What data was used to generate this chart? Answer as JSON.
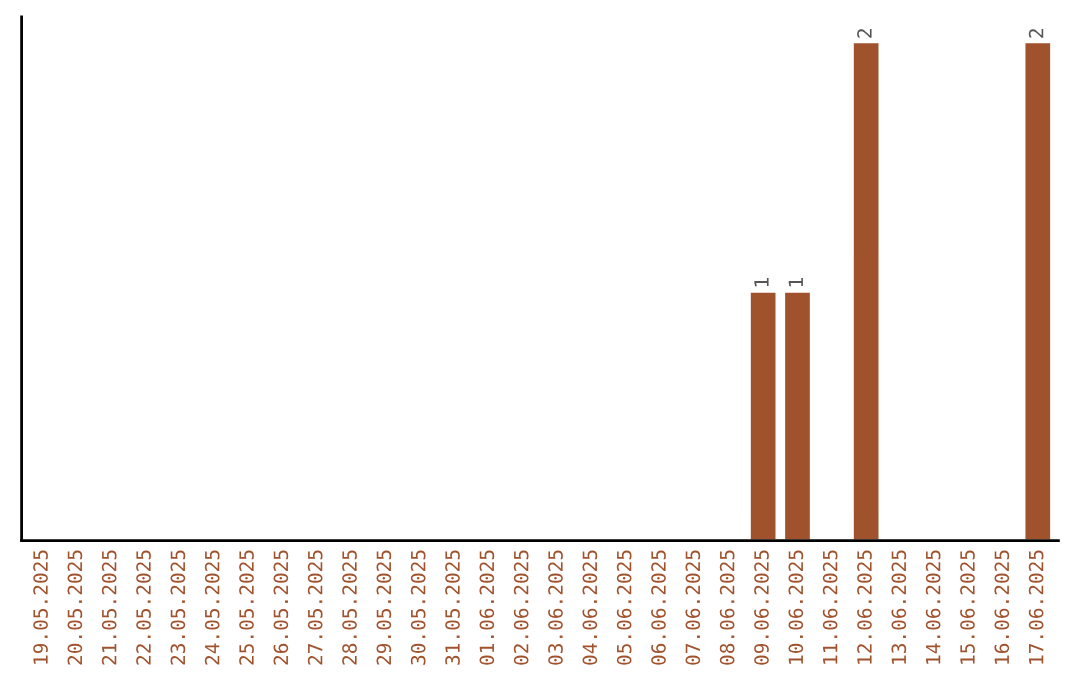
{
  "chart_data": {
    "type": "bar",
    "categories": [
      "19.05.2025",
      "20.05.2025",
      "21.05.2025",
      "22.05.2025",
      "23.05.2025",
      "24.05.2025",
      "25.05.2025",
      "26.05.2025",
      "27.05.2025",
      "28.05.2025",
      "29.05.2025",
      "30.05.2025",
      "31.05.2025",
      "01.06.2025",
      "02.06.2025",
      "03.06.2025",
      "04.06.2025",
      "05.06.2025",
      "06.06.2025",
      "07.06.2025",
      "08.06.2025",
      "09.06.2025",
      "10.06.2025",
      "11.06.2025",
      "12.06.2025",
      "13.06.2025",
      "14.06.2025",
      "15.06.2025",
      "16.06.2025",
      "17.06.2025"
    ],
    "values": [
      null,
      null,
      null,
      null,
      null,
      null,
      null,
      null,
      null,
      null,
      null,
      null,
      null,
      null,
      null,
      null,
      null,
      null,
      null,
      null,
      null,
      1,
      1,
      null,
      2,
      null,
      null,
      null,
      null,
      2
    ],
    "value_labels": [
      null,
      null,
      null,
      null,
      null,
      null,
      null,
      null,
      null,
      null,
      null,
      null,
      null,
      null,
      null,
      null,
      null,
      null,
      null,
      null,
      null,
      "1",
      "1",
      null,
      "2",
      null,
      null,
      null,
      null,
      "2"
    ],
    "color": "#a0522d",
    "tick_labels": "x",
    "grid": false,
    "legend": false
  }
}
